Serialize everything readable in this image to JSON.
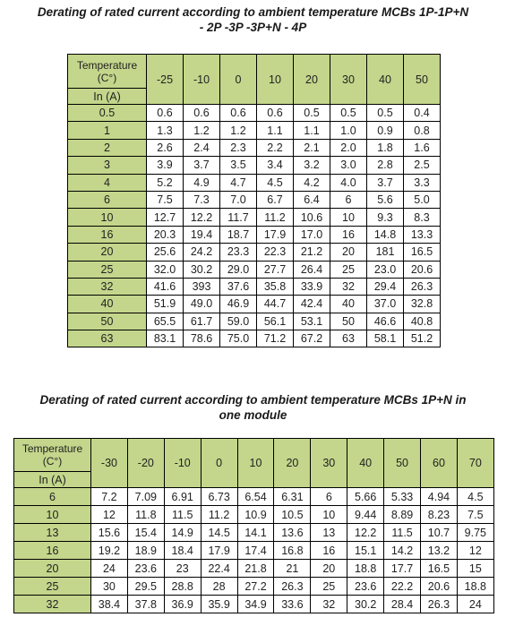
{
  "table1": {
    "title_line1": "Derating of rated current according to ambient temperature MCBs 1P-1P+N",
    "title_line2": "- 2P -3P -3P+N - 4P",
    "header_temp": "Temperature",
    "header_unit": "(C°)",
    "header_in": "In (A)",
    "temps": [
      "-25",
      "-10",
      "0",
      "10",
      "20",
      "30",
      "40",
      "50"
    ],
    "rows": [
      {
        "in": "0.5",
        "values": [
          "0.6",
          "0.6",
          "0.6",
          "0.6",
          "0.5",
          "0.5",
          "0.5",
          "0.4"
        ]
      },
      {
        "in": "1",
        "values": [
          "1.3",
          "1.2",
          "1.2",
          "1.1",
          "1.1",
          "1.0",
          "0.9",
          "0.8"
        ]
      },
      {
        "in": "2",
        "values": [
          "2.6",
          "2.4",
          "2.3",
          "2.2",
          "2.1",
          "2.0",
          "1.8",
          "1.6"
        ]
      },
      {
        "in": "3",
        "values": [
          "3.9",
          "3.7",
          "3.5",
          "3.4",
          "3.2",
          "3.0",
          "2.8",
          "2.5"
        ]
      },
      {
        "in": "4",
        "values": [
          "5.2",
          "4.9",
          "4.7",
          "4.5",
          "4.2",
          "4.0",
          "3.7",
          "3.3"
        ]
      },
      {
        "in": "6",
        "values": [
          "7.5",
          "7.3",
          "7.0",
          "6.7",
          "6.4",
          "6",
          "5.6",
          "5.0"
        ]
      },
      {
        "in": "10",
        "values": [
          "12.7",
          "12.2",
          "11.7",
          "11.2",
          "10.6",
          "10",
          "9.3",
          "8.3"
        ]
      },
      {
        "in": "16",
        "values": [
          "20.3",
          "19.4",
          "18.7",
          "17.9",
          "17.0",
          "16",
          "14.8",
          "13.3"
        ]
      },
      {
        "in": "20",
        "values": [
          "25.6",
          "24.2",
          "23.3",
          "22.3",
          "21.2",
          "20",
          "181",
          "16.5"
        ]
      },
      {
        "in": "25",
        "values": [
          "32.0",
          "30.2",
          "29.0",
          "27.7",
          "26.4",
          "25",
          "23.0",
          "20.6"
        ]
      },
      {
        "in": "32",
        "values": [
          "41.6",
          "393",
          "37.6",
          "35.8",
          "33.9",
          "32",
          "29.4",
          "26.3"
        ]
      },
      {
        "in": "40",
        "values": [
          "51.9",
          "49.0",
          "46.9",
          "44.7",
          "42.4",
          "40",
          "37.0",
          "32.8"
        ]
      },
      {
        "in": "50",
        "values": [
          "65.5",
          "61.7",
          "59.0",
          "56.1",
          "53.1",
          "50",
          "46.6",
          "40.8"
        ]
      },
      {
        "in": "63",
        "values": [
          "83.1",
          "78.6",
          "75.0",
          "71.2",
          "67.2",
          "63",
          "58.1",
          "51.2"
        ]
      }
    ]
  },
  "table2": {
    "title_line1": "Derating of rated current according to ambient temperature MCBs 1P+N in",
    "title_line2": "one module",
    "header_temp": "Temperature",
    "header_unit": "(C°)",
    "header_in": "In (A)",
    "temps": [
      "-30",
      "-20",
      "-10",
      "0",
      "10",
      "20",
      "30",
      "40",
      "50",
      "60",
      "70"
    ],
    "rows": [
      {
        "in": "6",
        "values": [
          "7.2",
          "7.09",
          "6.91",
          "6.73",
          "6.54",
          "6.31",
          "6",
          "5.66",
          "5.33",
          "4.94",
          "4.5"
        ]
      },
      {
        "in": "10",
        "values": [
          "12",
          "11.8",
          "11.5",
          "11.2",
          "10.9",
          "10.5",
          "10",
          "9.44",
          "8.89",
          "8.23",
          "7.5"
        ]
      },
      {
        "in": "13",
        "values": [
          "15.6",
          "15.4",
          "14.9",
          "14.5",
          "14.1",
          "13.6",
          "13",
          "12.2",
          "11.5",
          "10.7",
          "9.75"
        ]
      },
      {
        "in": "16",
        "values": [
          "19.2",
          "18.9",
          "18.4",
          "17.9",
          "17.4",
          "16.8",
          "16",
          "15.1",
          "14.2",
          "13.2",
          "12"
        ]
      },
      {
        "in": "20",
        "values": [
          "24",
          "23.6",
          "23",
          "22.4",
          "21.8",
          "21",
          "20",
          "18.8",
          "17.7",
          "16.5",
          "15"
        ]
      },
      {
        "in": "25",
        "values": [
          "30",
          "29.5",
          "28.8",
          "28",
          "27.2",
          "26.3",
          "25",
          "23.6",
          "22.2",
          "20.6",
          "18.8"
        ]
      },
      {
        "in": "32",
        "values": [
          "38.4",
          "37.8",
          "36.9",
          "35.9",
          "34.9",
          "33.6",
          "32",
          "30.2",
          "28.4",
          "26.3",
          "24"
        ]
      }
    ]
  },
  "colors": {
    "header_green": "#c3d68b",
    "cell_white": "#ffffff",
    "border": "#000000"
  }
}
